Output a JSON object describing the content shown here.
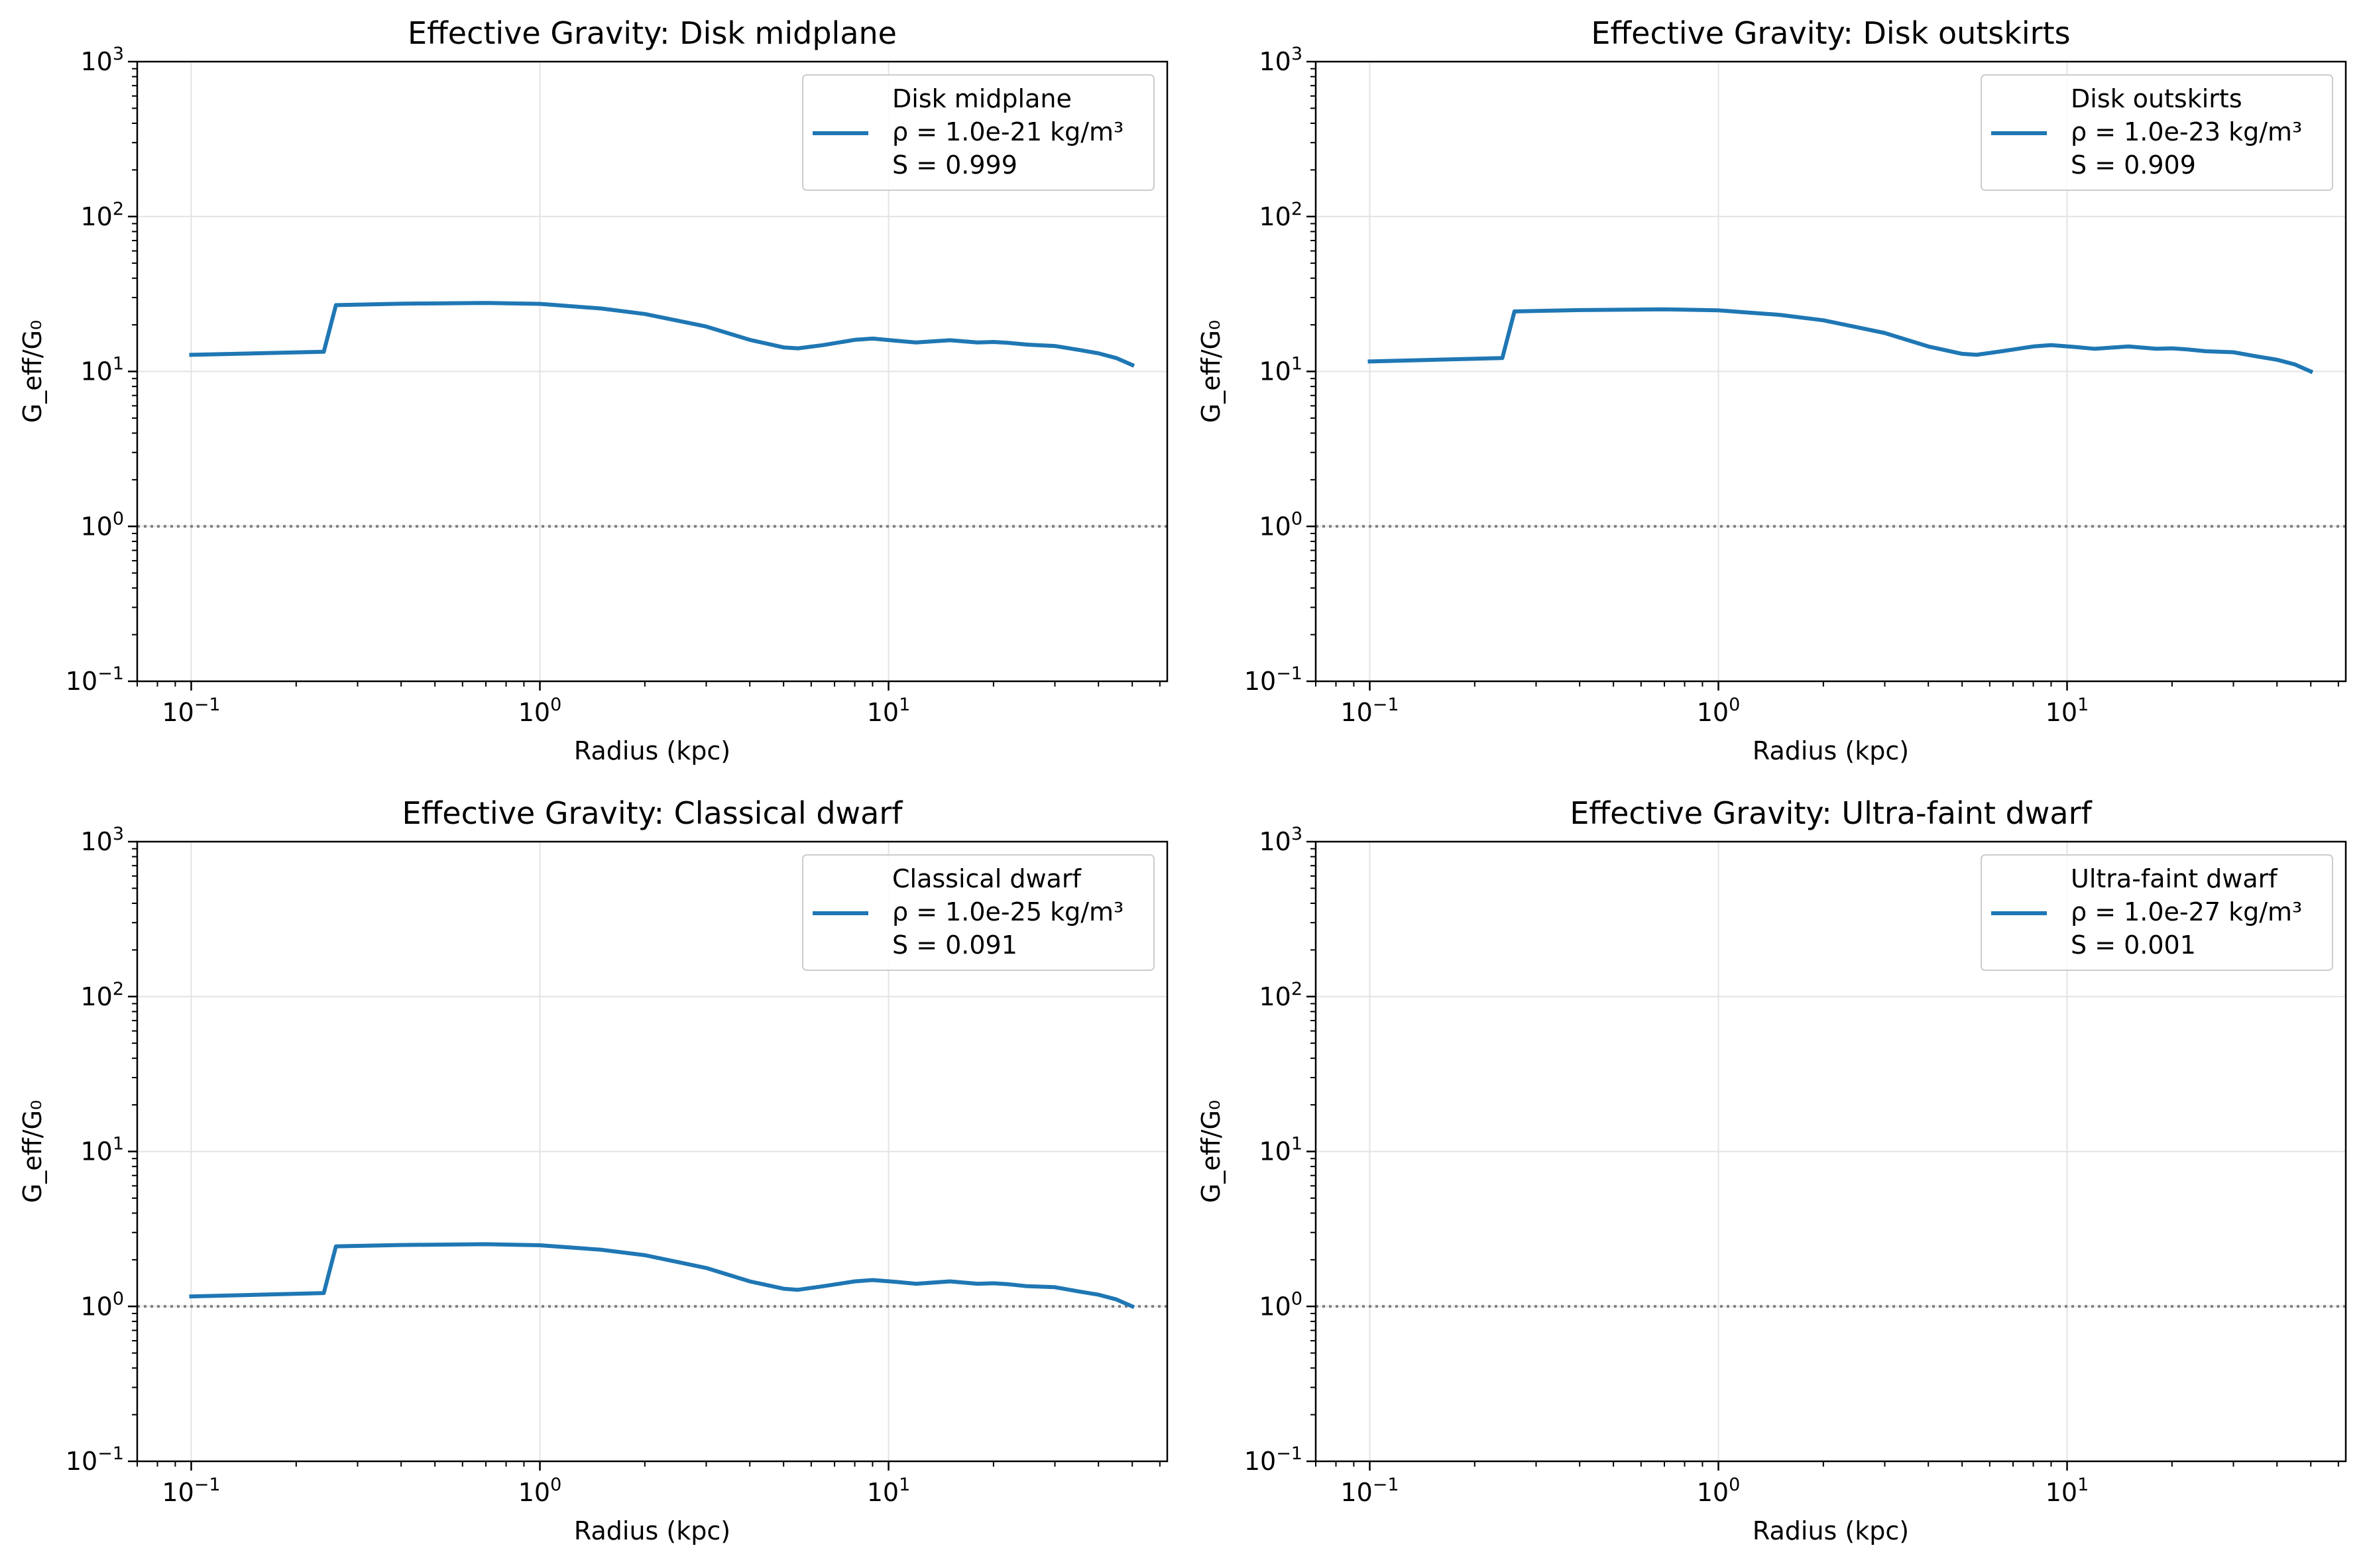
{
  "chart_data": [
    {
      "type": "line",
      "title": "Effective Gravity: Disk midplane",
      "xlabel": "Radius (kpc)",
      "ylabel": "G_eff/G₀",
      "xscale": "log",
      "yscale": "log",
      "xlim": [
        0.07,
        63
      ],
      "ylim": [
        0.1,
        1000
      ],
      "xticks": [
        {
          "base": "10",
          "exp": "−1",
          "value": 0.1
        },
        {
          "base": "10",
          "exp": "0",
          "value": 1
        },
        {
          "base": "10",
          "exp": "1",
          "value": 10
        }
      ],
      "yticks": [
        {
          "base": "10",
          "exp": "−1",
          "value": 0.1
        },
        {
          "base": "10",
          "exp": "0",
          "value": 1
        },
        {
          "base": "10",
          "exp": "1",
          "value": 10
        },
        {
          "base": "10",
          "exp": "2",
          "value": 100
        },
        {
          "base": "10",
          "exp": "3",
          "value": 1000
        }
      ],
      "grid": true,
      "reference_line": {
        "y": 1,
        "style": "dotted"
      },
      "legend": {
        "placement": "upper right",
        "lines": [
          "Disk midplane",
          "ρ = 1.0e-21 kg/m³",
          "S = 0.999"
        ]
      },
      "series": [
        {
          "color": "#1f77b4",
          "x": [
            0.1,
            0.24,
            0.26,
            0.4,
            0.7,
            1.0,
            1.5,
            2.0,
            3.0,
            4.0,
            5.0,
            5.5,
            6.5,
            8.0,
            9.0,
            10.5,
            12.0,
            15.0,
            18.0,
            20.0,
            22.0,
            25.0,
            30.0,
            35.0,
            40.0,
            45.0,
            50.0
          ],
          "y": [
            12.8,
            13.4,
            26.8,
            27.4,
            27.7,
            27.3,
            25.5,
            23.5,
            19.5,
            16.0,
            14.3,
            14.1,
            14.8,
            16.0,
            16.3,
            15.8,
            15.4,
            15.9,
            15.4,
            15.5,
            15.3,
            14.9,
            14.6,
            13.8,
            13.1,
            12.2,
            11.0
          ]
        }
      ]
    },
    {
      "type": "line",
      "title": "Effective Gravity: Disk outskirts",
      "xlabel": "Radius (kpc)",
      "ylabel": "G_eff/G₀",
      "xscale": "log",
      "yscale": "log",
      "xlim": [
        0.07,
        63
      ],
      "ylim": [
        0.1,
        1000
      ],
      "xticks": [
        {
          "base": "10",
          "exp": "−1",
          "value": 0.1
        },
        {
          "base": "10",
          "exp": "0",
          "value": 1
        },
        {
          "base": "10",
          "exp": "1",
          "value": 10
        }
      ],
      "yticks": [
        {
          "base": "10",
          "exp": "−1",
          "value": 0.1
        },
        {
          "base": "10",
          "exp": "0",
          "value": 1
        },
        {
          "base": "10",
          "exp": "1",
          "value": 10
        },
        {
          "base": "10",
          "exp": "2",
          "value": 100
        },
        {
          "base": "10",
          "exp": "3",
          "value": 1000
        }
      ],
      "grid": true,
      "reference_line": {
        "y": 1,
        "style": "dotted"
      },
      "legend": {
        "placement": "upper right",
        "lines": [
          "Disk outskirts",
          "ρ = 1.0e-23 kg/m³",
          "S = 0.909"
        ]
      },
      "series": [
        {
          "color": "#1f77b4",
          "x": [
            0.1,
            0.24,
            0.26,
            0.4,
            0.7,
            1.0,
            1.5,
            2.0,
            3.0,
            4.0,
            5.0,
            5.5,
            6.5,
            8.0,
            9.0,
            10.5,
            12.0,
            15.0,
            18.0,
            20.0,
            22.0,
            25.0,
            30.0,
            35.0,
            40.0,
            45.0,
            50.0
          ],
          "y": [
            11.6,
            12.2,
            24.4,
            24.9,
            25.2,
            24.8,
            23.2,
            21.4,
            17.7,
            14.5,
            13.0,
            12.8,
            13.5,
            14.5,
            14.8,
            14.4,
            14.0,
            14.5,
            14.0,
            14.1,
            13.9,
            13.5,
            13.3,
            12.5,
            11.9,
            11.1,
            10.0
          ]
        }
      ]
    },
    {
      "type": "line",
      "title": "Effective Gravity: Classical dwarf",
      "xlabel": "Radius (kpc)",
      "ylabel": "G_eff/G₀",
      "xscale": "log",
      "yscale": "log",
      "xlim": [
        0.07,
        63
      ],
      "ylim": [
        0.1,
        1000
      ],
      "xticks": [
        {
          "base": "10",
          "exp": "−1",
          "value": 0.1
        },
        {
          "base": "10",
          "exp": "0",
          "value": 1
        },
        {
          "base": "10",
          "exp": "1",
          "value": 10
        }
      ],
      "yticks": [
        {
          "base": "10",
          "exp": "−1",
          "value": 0.1
        },
        {
          "base": "10",
          "exp": "0",
          "value": 1
        },
        {
          "base": "10",
          "exp": "1",
          "value": 10
        },
        {
          "base": "10",
          "exp": "2",
          "value": 100
        },
        {
          "base": "10",
          "exp": "3",
          "value": 1000
        }
      ],
      "grid": true,
      "reference_line": {
        "y": 1,
        "style": "dotted"
      },
      "legend": {
        "placement": "upper right",
        "lines": [
          "Classical dwarf",
          "ρ = 1.0e-25 kg/m³",
          "S = 0.091"
        ]
      },
      "series": [
        {
          "color": "#1f77b4",
          "x": [
            0.1,
            0.24,
            0.26,
            0.4,
            0.7,
            1.0,
            1.5,
            2.0,
            3.0,
            4.0,
            5.0,
            5.5,
            6.5,
            8.0,
            9.0,
            10.5,
            12.0,
            15.0,
            18.0,
            20.0,
            22.0,
            25.0,
            30.0,
            35.0,
            40.0,
            45.0,
            50.0
          ],
          "y": [
            1.16,
            1.22,
            2.44,
            2.49,
            2.52,
            2.48,
            2.32,
            2.14,
            1.77,
            1.45,
            1.3,
            1.28,
            1.35,
            1.45,
            1.48,
            1.44,
            1.4,
            1.45,
            1.4,
            1.41,
            1.39,
            1.35,
            1.33,
            1.25,
            1.19,
            1.11,
            1.0
          ]
        }
      ]
    },
    {
      "type": "line",
      "title": "Effective Gravity: Ultra-faint dwarf",
      "xlabel": "Radius (kpc)",
      "ylabel": "G_eff/G₀",
      "xscale": "log",
      "yscale": "log",
      "xlim": [
        0.07,
        63
      ],
      "ylim": [
        0.1,
        1000
      ],
      "xticks": [
        {
          "base": "10",
          "exp": "−1",
          "value": 0.1
        },
        {
          "base": "10",
          "exp": "0",
          "value": 1
        },
        {
          "base": "10",
          "exp": "1",
          "value": 10
        }
      ],
      "yticks": [
        {
          "base": "10",
          "exp": "−1",
          "value": 0.1
        },
        {
          "base": "10",
          "exp": "0",
          "value": 1
        },
        {
          "base": "10",
          "exp": "1",
          "value": 10
        },
        {
          "base": "10",
          "exp": "2",
          "value": 100
        },
        {
          "base": "10",
          "exp": "3",
          "value": 1000
        }
      ],
      "grid": true,
      "reference_line": {
        "y": 1,
        "style": "dotted"
      },
      "legend": {
        "placement": "upper right",
        "lines": [
          "Ultra-faint dwarf",
          "ρ = 1.0e-27 kg/m³",
          "S = 0.001"
        ]
      },
      "series": [
        {
          "color": "#1f77b4",
          "x": [],
          "y": []
        }
      ]
    }
  ]
}
